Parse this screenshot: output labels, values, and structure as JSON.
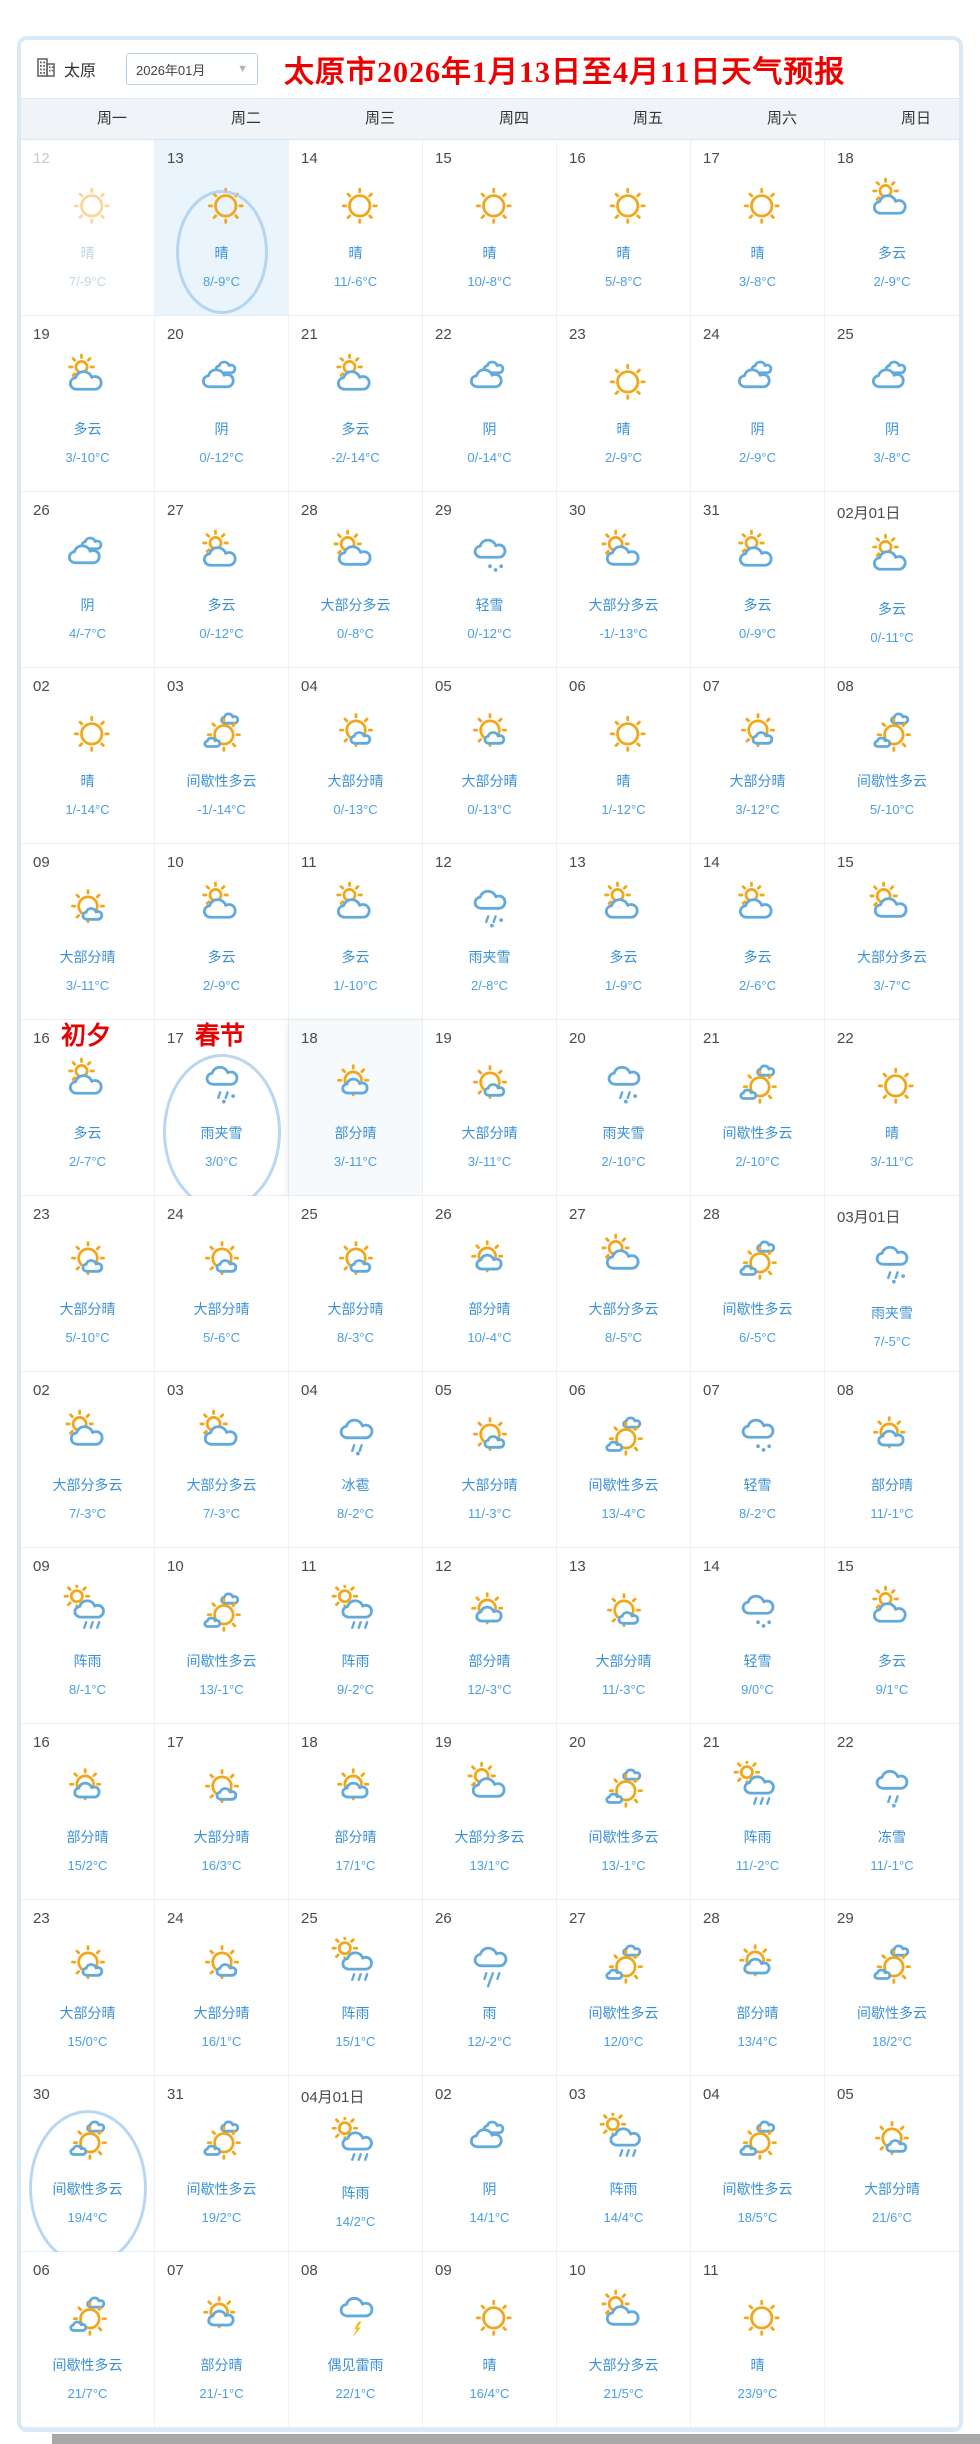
{
  "header": {
    "city": "太原",
    "month_select": "2026年01月",
    "title": "太原市2026年1月13日至4月11日天气预报"
  },
  "weekdays": [
    "周一",
    "周二",
    "周三",
    "周四",
    "周五",
    "周六",
    "周日"
  ],
  "colors": {
    "title_red": "#ee0000",
    "desc_blue": "#3b91d8",
    "temp_blue": "#4aa0e2",
    "sun_orange": "#f2a71b",
    "cloud_blue": "#62a9dc",
    "today_bg": "#e9f4fd",
    "header_bg": "#f0f4f8",
    "frame_blue": "#d9e9f5"
  },
  "weeks": [
    [
      {
        "d": "12",
        "w": "晴",
        "t": "7/-9°C",
        "i": "sunny",
        "past": true
      },
      {
        "d": "13",
        "w": "晴",
        "t": "8/-9°C",
        "i": "sunny",
        "today": true,
        "circle": "c1"
      },
      {
        "d": "14",
        "w": "晴",
        "t": "11/-6°C",
        "i": "sunny"
      },
      {
        "d": "15",
        "w": "晴",
        "t": "10/-8°C",
        "i": "sunny"
      },
      {
        "d": "16",
        "w": "晴",
        "t": "5/-8°C",
        "i": "sunny"
      },
      {
        "d": "17",
        "w": "晴",
        "t": "3/-8°C",
        "i": "sunny"
      },
      {
        "d": "18",
        "w": "多云",
        "t": "2/-9°C",
        "i": "cloudy"
      }
    ],
    [
      {
        "d": "19",
        "w": "多云",
        "t": "3/-10°C",
        "i": "cloudy"
      },
      {
        "d": "20",
        "w": "阴",
        "t": "0/-12°C",
        "i": "overcast"
      },
      {
        "d": "21",
        "w": "多云",
        "t": "-2/-14°C",
        "i": "cloudy"
      },
      {
        "d": "22",
        "w": "阴",
        "t": "0/-14°C",
        "i": "overcast"
      },
      {
        "d": "23",
        "w": "晴",
        "t": "2/-9°C",
        "i": "sunny"
      },
      {
        "d": "24",
        "w": "阴",
        "t": "2/-9°C",
        "i": "overcast"
      },
      {
        "d": "25",
        "w": "阴",
        "t": "3/-8°C",
        "i": "overcast"
      }
    ],
    [
      {
        "d": "26",
        "w": "阴",
        "t": "4/-7°C",
        "i": "overcast"
      },
      {
        "d": "27",
        "w": "多云",
        "t": "0/-12°C",
        "i": "cloudy"
      },
      {
        "d": "28",
        "w": "大部分多云",
        "t": "0/-8°C",
        "i": "mostly-cloudy"
      },
      {
        "d": "29",
        "w": "轻雪",
        "t": "0/-12°C",
        "i": "light-snow"
      },
      {
        "d": "30",
        "w": "大部分多云",
        "t": "-1/-13°C",
        "i": "mostly-cloudy"
      },
      {
        "d": "31",
        "w": "多云",
        "t": "0/-9°C",
        "i": "cloudy"
      },
      {
        "d": "02月01日",
        "w": "多云",
        "t": "0/-11°C",
        "i": "cloudy"
      }
    ],
    [
      {
        "d": "02",
        "w": "晴",
        "t": "1/-14°C",
        "i": "sunny"
      },
      {
        "d": "03",
        "w": "间歇性多云",
        "t": "-1/-14°C",
        "i": "intermittent"
      },
      {
        "d": "04",
        "w": "大部分晴",
        "t": "0/-13°C",
        "i": "mostly-sunny"
      },
      {
        "d": "05",
        "w": "大部分晴",
        "t": "0/-13°C",
        "i": "mostly-sunny"
      },
      {
        "d": "06",
        "w": "晴",
        "t": "1/-12°C",
        "i": "sunny"
      },
      {
        "d": "07",
        "w": "大部分晴",
        "t": "3/-12°C",
        "i": "mostly-sunny"
      },
      {
        "d": "08",
        "w": "间歇性多云",
        "t": "5/-10°C",
        "i": "intermittent"
      }
    ],
    [
      {
        "d": "09",
        "w": "大部分晴",
        "t": "3/-11°C",
        "i": "mostly-sunny"
      },
      {
        "d": "10",
        "w": "多云",
        "t": "2/-9°C",
        "i": "cloudy"
      },
      {
        "d": "11",
        "w": "多云",
        "t": "1/-10°C",
        "i": "cloudy"
      },
      {
        "d": "12",
        "w": "雨夹雪",
        "t": "2/-8°C",
        "i": "rain-snow"
      },
      {
        "d": "13",
        "w": "多云",
        "t": "1/-9°C",
        "i": "cloudy"
      },
      {
        "d": "14",
        "w": "多云",
        "t": "2/-6°C",
        "i": "cloudy"
      },
      {
        "d": "15",
        "w": "大部分多云",
        "t": "3/-7°C",
        "i": "mostly-cloudy"
      }
    ],
    [
      {
        "d": "16",
        "w": "多云",
        "t": "2/-7°C",
        "i": "cloudy",
        "tag": "初夕"
      },
      {
        "d": "17",
        "w": "雨夹雪",
        "t": "3/0°C",
        "i": "rain-snow",
        "tag": "春节",
        "circle": "c2"
      },
      {
        "d": "18",
        "w": "部分晴",
        "t": "3/-11°C",
        "i": "partly-sunny",
        "hl": true
      },
      {
        "d": "19",
        "w": "大部分晴",
        "t": "3/-11°C",
        "i": "mostly-sunny"
      },
      {
        "d": "20",
        "w": "雨夹雪",
        "t": "2/-10°C",
        "i": "rain-snow"
      },
      {
        "d": "21",
        "w": "间歇性多云",
        "t": "2/-10°C",
        "i": "intermittent"
      },
      {
        "d": "22",
        "w": "晴",
        "t": "3/-11°C",
        "i": "sunny"
      }
    ],
    [
      {
        "d": "23",
        "w": "大部分晴",
        "t": "5/-10°C",
        "i": "mostly-sunny"
      },
      {
        "d": "24",
        "w": "大部分晴",
        "t": "5/-6°C",
        "i": "mostly-sunny"
      },
      {
        "d": "25",
        "w": "大部分晴",
        "t": "8/-3°C",
        "i": "mostly-sunny"
      },
      {
        "d": "26",
        "w": "部分晴",
        "t": "10/-4°C",
        "i": "partly-sunny"
      },
      {
        "d": "27",
        "w": "大部分多云",
        "t": "8/-5°C",
        "i": "mostly-cloudy"
      },
      {
        "d": "28",
        "w": "间歇性多云",
        "t": "6/-5°C",
        "i": "intermittent"
      },
      {
        "d": "03月01日",
        "w": "雨夹雪",
        "t": "7/-5°C",
        "i": "rain-snow"
      }
    ],
    [
      {
        "d": "02",
        "w": "大部分多云",
        "t": "7/-3°C",
        "i": "mostly-cloudy"
      },
      {
        "d": "03",
        "w": "大部分多云",
        "t": "7/-3°C",
        "i": "mostly-cloudy"
      },
      {
        "d": "04",
        "w": "冰雹",
        "t": "8/-2°C",
        "i": "hail"
      },
      {
        "d": "05",
        "w": "大部分晴",
        "t": "11/-3°C",
        "i": "mostly-sunny"
      },
      {
        "d": "06",
        "w": "间歇性多云",
        "t": "13/-4°C",
        "i": "intermittent"
      },
      {
        "d": "07",
        "w": "轻雪",
        "t": "8/-2°C",
        "i": "light-snow"
      },
      {
        "d": "08",
        "w": "部分晴",
        "t": "11/-1°C",
        "i": "partly-sunny"
      }
    ],
    [
      {
        "d": "09",
        "w": "阵雨",
        "t": "8/-1°C",
        "i": "showers"
      },
      {
        "d": "10",
        "w": "间歇性多云",
        "t": "13/-1°C",
        "i": "intermittent"
      },
      {
        "d": "11",
        "w": "阵雨",
        "t": "9/-2°C",
        "i": "showers"
      },
      {
        "d": "12",
        "w": "部分晴",
        "t": "12/-3°C",
        "i": "partly-sunny"
      },
      {
        "d": "13",
        "w": "大部分晴",
        "t": "11/-3°C",
        "i": "mostly-sunny"
      },
      {
        "d": "14",
        "w": "轻雪",
        "t": "9/0°C",
        "i": "light-snow"
      },
      {
        "d": "15",
        "w": "多云",
        "t": "9/1°C",
        "i": "cloudy"
      }
    ],
    [
      {
        "d": "16",
        "w": "部分晴",
        "t": "15/2°C",
        "i": "partly-sunny"
      },
      {
        "d": "17",
        "w": "大部分晴",
        "t": "16/3°C",
        "i": "mostly-sunny"
      },
      {
        "d": "18",
        "w": "部分晴",
        "t": "17/1°C",
        "i": "partly-sunny"
      },
      {
        "d": "19",
        "w": "大部分多云",
        "t": "13/1°C",
        "i": "mostly-cloudy"
      },
      {
        "d": "20",
        "w": "间歇性多云",
        "t": "13/-1°C",
        "i": "intermittent"
      },
      {
        "d": "21",
        "w": "阵雨",
        "t": "11/-2°C",
        "i": "showers"
      },
      {
        "d": "22",
        "w": "冻雪",
        "t": "11/-1°C",
        "i": "freezing"
      }
    ],
    [
      {
        "d": "23",
        "w": "大部分晴",
        "t": "15/0°C",
        "i": "mostly-sunny"
      },
      {
        "d": "24",
        "w": "大部分晴",
        "t": "16/1°C",
        "i": "mostly-sunny"
      },
      {
        "d": "25",
        "w": "阵雨",
        "t": "15/1°C",
        "i": "showers"
      },
      {
        "d": "26",
        "w": "雨",
        "t": "12/-2°C",
        "i": "rain"
      },
      {
        "d": "27",
        "w": "间歇性多云",
        "t": "12/0°C",
        "i": "intermittent"
      },
      {
        "d": "28",
        "w": "部分晴",
        "t": "13/4°C",
        "i": "partly-sunny"
      },
      {
        "d": "29",
        "w": "间歇性多云",
        "t": "18/2°C",
        "i": "intermittent"
      }
    ],
    [
      {
        "d": "30",
        "w": "间歇性多云",
        "t": "19/4°C",
        "i": "intermittent",
        "circle": "c2"
      },
      {
        "d": "31",
        "w": "间歇性多云",
        "t": "19/2°C",
        "i": "intermittent"
      },
      {
        "d": "04月01日",
        "w": "阵雨",
        "t": "14/2°C",
        "i": "showers"
      },
      {
        "d": "02",
        "w": "阴",
        "t": "14/1°C",
        "i": "overcast"
      },
      {
        "d": "03",
        "w": "阵雨",
        "t": "14/4°C",
        "i": "showers"
      },
      {
        "d": "04",
        "w": "间歇性多云",
        "t": "18/5°C",
        "i": "intermittent"
      },
      {
        "d": "05",
        "w": "大部分晴",
        "t": "21/6°C",
        "i": "mostly-sunny"
      }
    ],
    [
      {
        "d": "06",
        "w": "间歇性多云",
        "t": "21/7°C",
        "i": "intermittent"
      },
      {
        "d": "07",
        "w": "部分晴",
        "t": "21/-1°C",
        "i": "partly-sunny"
      },
      {
        "d": "08",
        "w": "偶见雷雨",
        "t": "22/1°C",
        "i": "tstorm"
      },
      {
        "d": "09",
        "w": "晴",
        "t": "16/4°C",
        "i": "sunny"
      },
      {
        "d": "10",
        "w": "大部分多云",
        "t": "21/5°C",
        "i": "mostly-cloudy"
      },
      {
        "d": "11",
        "w": "晴",
        "t": "23/9°C",
        "i": "sunny"
      },
      {
        "empty": true
      }
    ]
  ]
}
